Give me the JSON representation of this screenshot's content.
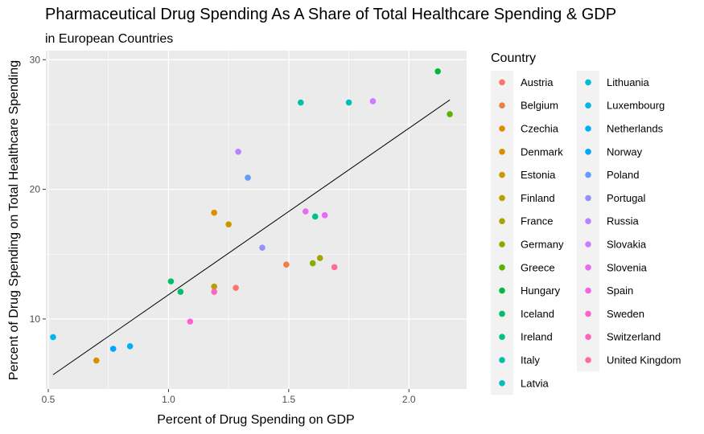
{
  "chart_data": {
    "type": "scatter",
    "title": "Pharmaceutical Drug Spending As A Share of Total Healthcare Spending & GDP",
    "subtitle": "in European Countries",
    "xlabel": "Percent of Drug Spending on GDP",
    "ylabel": "Percent of Drug Spending on Total Healthcare Spending",
    "xlim": [
      0.49,
      2.24
    ],
    "ylim": [
      4.6,
      30.7
    ],
    "x_ticks": [
      0.5,
      1.0,
      1.5,
      2.0
    ],
    "x_tick_labels": [
      "0.5",
      "1.0",
      "1.5",
      "2.0"
    ],
    "y_ticks": [
      10,
      20,
      30
    ],
    "y_tick_labels": [
      "10",
      "20",
      "30"
    ],
    "grid": true,
    "background": "#ebebeb",
    "legend": {
      "title": "Country",
      "placement": "right",
      "columns": 2,
      "entries": [
        {
          "name": "Austria",
          "color": "#F8766D"
        },
        {
          "name": "Belgium",
          "color": "#EF7F47"
        },
        {
          "name": "Czechia",
          "color": "#E58700"
        },
        {
          "name": "Denmark",
          "color": "#D89000"
        },
        {
          "name": "Estonia",
          "color": "#C99800"
        },
        {
          "name": "Finland",
          "color": "#B79F00"
        },
        {
          "name": "France",
          "color": "#A3A500"
        },
        {
          "name": "Germany",
          "color": "#85AD00"
        },
        {
          "name": "Greece",
          "color": "#5BB300"
        },
        {
          "name": "Hungary",
          "color": "#00BA38"
        },
        {
          "name": "Iceland",
          "color": "#00BE6C"
        },
        {
          "name": "Ireland",
          "color": "#00C08B"
        },
        {
          "name": "Italy",
          "color": "#00C1A3"
        },
        {
          "name": "Latvia",
          "color": "#00BFBA"
        },
        {
          "name": "Lithuania",
          "color": "#00BCD8"
        },
        {
          "name": "Luxembourg",
          "color": "#00B7E9"
        },
        {
          "name": "Netherlands",
          "color": "#00B0F6"
        },
        {
          "name": "Norway",
          "color": "#00A5FF"
        },
        {
          "name": "Poland",
          "color": "#619CFF"
        },
        {
          "name": "Portugal",
          "color": "#9590FF"
        },
        {
          "name": "Russia",
          "color": "#B983FF"
        },
        {
          "name": "Slovakia",
          "color": "#D078FF"
        },
        {
          "name": "Slovenia",
          "color": "#E76BF3"
        },
        {
          "name": "Spain",
          "color": "#F464E3"
        },
        {
          "name": "Sweden",
          "color": "#FD61D1"
        },
        {
          "name": "Switzerland",
          "color": "#FF62BC"
        },
        {
          "name": "United Kingdom",
          "color": "#FF6A98"
        }
      ]
    },
    "points": [
      {
        "x": 2.12,
        "y": 29.1,
        "color": "#00BA38"
      },
      {
        "x": 2.17,
        "y": 25.8,
        "color": "#5BB300"
      },
      {
        "x": 1.75,
        "y": 26.7,
        "color": "#00BFBA"
      },
      {
        "x": 1.55,
        "y": 26.7,
        "color": "#00C1A3"
      },
      {
        "x": 1.85,
        "y": 26.8,
        "color": "#D078FF"
      },
      {
        "x": 1.29,
        "y": 22.9,
        "color": "#B983FF"
      },
      {
        "x": 1.33,
        "y": 20.9,
        "color": "#619CFF"
      },
      {
        "x": 1.19,
        "y": 18.2,
        "color": "#D89000"
      },
      {
        "x": 1.25,
        "y": 17.3,
        "color": "#C99800"
      },
      {
        "x": 1.57,
        "y": 18.3,
        "color": "#E76BF3"
      },
      {
        "x": 1.61,
        "y": 17.9,
        "color": "#00C08B"
      },
      {
        "x": 1.65,
        "y": 18.0,
        "color": "#E76BF3"
      },
      {
        "x": 1.39,
        "y": 15.5,
        "color": "#9590FF"
      },
      {
        "x": 1.49,
        "y": 14.2,
        "color": "#EF7F47"
      },
      {
        "x": 1.63,
        "y": 14.7,
        "color": "#A3A500"
      },
      {
        "x": 1.6,
        "y": 14.3,
        "color": "#85AD00"
      },
      {
        "x": 1.69,
        "y": 14.0,
        "color": "#FF6A98"
      },
      {
        "x": 1.01,
        "y": 12.9,
        "color": "#00BE6C"
      },
      {
        "x": 1.05,
        "y": 12.1,
        "color": "#00BE6C"
      },
      {
        "x": 1.19,
        "y": 12.5,
        "color": "#B79F00"
      },
      {
        "x": 1.28,
        "y": 12.4,
        "color": "#F8766D"
      },
      {
        "x": 1.19,
        "y": 12.1,
        "color": "#FF62BC"
      },
      {
        "x": 1.09,
        "y": 9.8,
        "color": "#FD61D1"
      },
      {
        "x": 0.52,
        "y": 8.6,
        "color": "#00B7E9"
      },
      {
        "x": 0.77,
        "y": 7.7,
        "color": "#00A5FF"
      },
      {
        "x": 0.84,
        "y": 7.9,
        "color": "#00B0F6"
      },
      {
        "x": 0.7,
        "y": 6.8,
        "color": "#D89000"
      }
    ],
    "trend_line": {
      "x": [
        0.52,
        2.17
      ],
      "y": [
        5.7,
        26.9
      ],
      "color": "#000000"
    }
  }
}
